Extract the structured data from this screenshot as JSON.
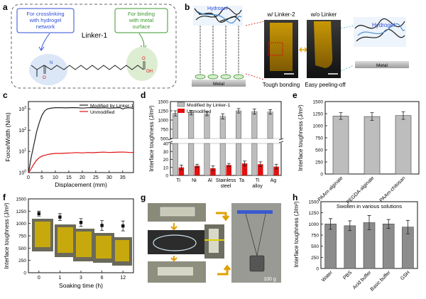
{
  "figure": {
    "panel_labels": [
      "a",
      "b",
      "c",
      "d",
      "e",
      "f",
      "g",
      "h"
    ]
  },
  "panel_a": {
    "title": "Linker-1",
    "left_box": "For crosslinking with hydrogel network",
    "right_box": "For binding with metal surface",
    "colors": {
      "blue": "#2e4fd6",
      "green": "#3a9a2a",
      "blue_fill": "#dbe6f6",
      "green_fill": "#dcedd1"
    }
  },
  "panel_b": {
    "hydrogel": "Hydrogel",
    "metal": "Metal",
    "with_linker": "w/ Linker-2",
    "without_linker": "w/o Linker",
    "tough": "Tough bonding",
    "easy": "Easy peeling-off"
  },
  "chart_data": [
    {
      "id": "c",
      "type": "line",
      "xlabel": "Displacement (mm)",
      "ylabel": "Force/Width (N/m)",
      "x_ticks": [
        0,
        5,
        10,
        15,
        20,
        25,
        30,
        35
      ],
      "xlim": [
        0,
        39
      ],
      "y_log": true,
      "ylim_exp": [
        0,
        3.35
      ],
      "y_tick_exp": [
        0,
        1,
        2,
        3
      ],
      "series": [
        {
          "name": "Modified by Linker-1",
          "color": "#222222",
          "x": [
            0,
            0.5,
            1,
            2,
            3,
            4,
            5,
            6,
            7,
            8,
            9,
            10,
            12,
            14,
            16,
            18,
            20,
            22,
            24,
            26,
            28,
            30,
            32,
            34,
            35,
            36,
            37,
            38,
            39
          ],
          "y": [
            1,
            2,
            5,
            20,
            80,
            220,
            500,
            800,
            1000,
            1080,
            1120,
            1150,
            1150,
            1130,
            1160,
            1150,
            1100,
            1140,
            1150,
            1120,
            1140,
            1100,
            1130,
            1150,
            1000,
            1100,
            1150,
            1130,
            1050
          ]
        },
        {
          "name": "Unmodified",
          "color": "#e01010",
          "x": [
            0,
            0.5,
            1,
            2,
            3,
            4,
            5,
            6,
            7,
            8,
            10,
            12,
            14,
            16,
            18,
            20,
            22,
            24,
            26,
            28,
            30,
            32,
            34,
            36,
            38,
            39
          ],
          "y": [
            1,
            1.2,
            1.5,
            2.5,
            3.8,
            5,
            6,
            6.5,
            7,
            7.5,
            8,
            8,
            8.3,
            8.5,
            8.8,
            8.5,
            8.9,
            8.7,
            9,
            9.2,
            8.9,
            9.1,
            9.3,
            9.2,
            8.8,
            9
          ]
        }
      ]
    },
    {
      "id": "d",
      "type": "bar",
      "ylabel": "Interface toughness (J/m²)",
      "categories": [
        "Ti",
        "Ni",
        "Al",
        "Stainless steel",
        "Ta",
        "Ti alloy",
        "Ag"
      ],
      "category_lines": [
        [
          "Ti"
        ],
        [
          "Ni"
        ],
        [
          "Al"
        ],
        [
          "Stainless",
          "steel"
        ],
        [
          "Ta"
        ],
        [
          "Ti",
          "alloy"
        ],
        [
          "Ag"
        ]
      ],
      "series": [
        {
          "name": "Modified by Linker-1",
          "color": "#bdbdbd",
          "values": [
            1180,
            1200,
            1170,
            1100,
            1250,
            1230,
            1220
          ],
          "errors": [
            70,
            60,
            55,
            70,
            60,
            70,
            60
          ]
        },
        {
          "name": "Unmodified",
          "color": "#e01010",
          "values": [
            10,
            12,
            9,
            13,
            15,
            14,
            11
          ],
          "errors": [
            3,
            2,
            3,
            2,
            3,
            3,
            3
          ]
        }
      ],
      "y_ticks_low": [
        0,
        10,
        20,
        30,
        40
      ],
      "y_ticks_high": [
        500,
        750,
        1000,
        1250,
        1500
      ]
    },
    {
      "id": "e",
      "type": "bar",
      "ylabel": "Interface toughness (J/m²)",
      "categories": [
        "PAAm-alginate",
        "PEGDA-alginate",
        "PAAm-chitosan"
      ],
      "values": [
        1200,
        1190,
        1210
      ],
      "errors": [
        70,
        80,
        80
      ],
      "color": "#bdbdbd",
      "ylim": [
        0,
        1500
      ],
      "y_ticks": [
        0,
        250,
        500,
        750,
        1000,
        1250,
        1500
      ]
    },
    {
      "id": "f",
      "type": "scatter",
      "xlabel": "Soaking time (h)",
      "ylabel": "Interface toughness (J/m²)",
      "categories": [
        "0",
        "1",
        "3",
        "6",
        "12"
      ],
      "values": [
        1200,
        1130,
        1020,
        960,
        950
      ],
      "errors": [
        50,
        70,
        80,
        100,
        100
      ],
      "ylim": [
        0,
        1500
      ],
      "y_ticks": [
        0,
        250,
        500,
        750,
        1000,
        1250,
        1500
      ]
    },
    {
      "id": "h",
      "type": "bar",
      "title": "Swollen in various solutions",
      "ylabel": "Interface toughness (J/m²)",
      "categories": [
        "Water",
        "PBS",
        "Acid buffer",
        "Basic buffer",
        "GSH"
      ],
      "values": [
        1000,
        960,
        1030,
        1000,
        930
      ],
      "errors": [
        120,
        110,
        160,
        100,
        150
      ],
      "color": "#8c8c8c",
      "ylim": [
        0,
        1500
      ],
      "y_ticks": [
        0,
        250,
        500,
        750,
        1000,
        1250,
        1500
      ]
    }
  ],
  "panel_g": {
    "weight": "100 g"
  }
}
